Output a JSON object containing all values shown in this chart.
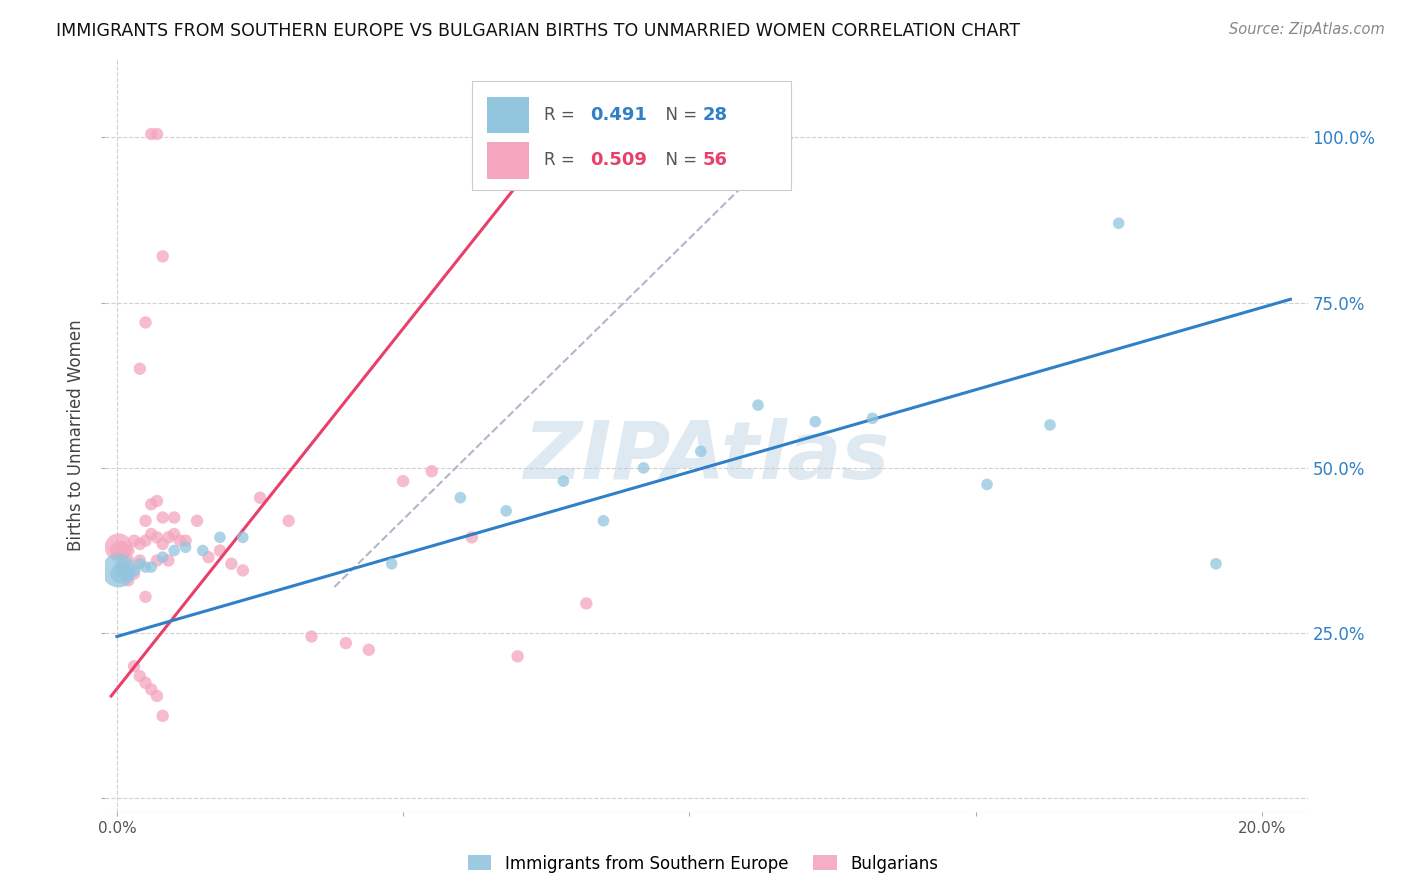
{
  "title": "IMMIGRANTS FROM SOUTHERN EUROPE VS BULGARIAN BIRTHS TO UNMARRIED WOMEN CORRELATION CHART",
  "source": "Source: ZipAtlas.com",
  "ylabel_left": "Births to Unmarried Women",
  "legend_labels": [
    "Immigrants from Southern Europe",
    "Bulgarians"
  ],
  "watermark": "ZIPAtlas",
  "blue_color": "#92c5de",
  "pink_color": "#f4a6be",
  "blue_line_color": "#3080c8",
  "pink_line_color": "#e8406a",
  "xlim": [
    -0.002,
    0.208
  ],
  "ylim": [
    -0.02,
    1.12
  ],
  "blue_line_x": [
    0.0,
    0.205
  ],
  "blue_line_y": [
    0.245,
    0.755
  ],
  "pink_line_x": [
    -0.001,
    0.077
  ],
  "pink_line_y": [
    0.155,
    1.005
  ],
  "dashed_line_x": [
    0.038,
    0.118
  ],
  "dashed_line_y": [
    0.32,
    1.0
  ],
  "blue_scatter_x": [
    0.0003,
    0.0006,
    0.001,
    0.002,
    0.003,
    0.004,
    0.005,
    0.006,
    0.008,
    0.01,
    0.012,
    0.015,
    0.018,
    0.022,
    0.048,
    0.06,
    0.068,
    0.078,
    0.085,
    0.092,
    0.102,
    0.112,
    0.122,
    0.132,
    0.152,
    0.163,
    0.175,
    0.192
  ],
  "blue_scatter_y": [
    0.345,
    0.34,
    0.35,
    0.34,
    0.345,
    0.355,
    0.35,
    0.35,
    0.365,
    0.375,
    0.38,
    0.375,
    0.395,
    0.395,
    0.355,
    0.455,
    0.435,
    0.48,
    0.42,
    0.5,
    0.525,
    0.595,
    0.57,
    0.575,
    0.475,
    0.565,
    0.87,
    0.355
  ],
  "blue_scatter_sizes": [
    600,
    200,
    130,
    100,
    80,
    70,
    70,
    70,
    70,
    70,
    70,
    70,
    70,
    70,
    70,
    70,
    70,
    70,
    70,
    70,
    70,
    70,
    70,
    70,
    70,
    70,
    70,
    70
  ],
  "pink_scatter_x": [
    0.0003,
    0.0005,
    0.001,
    0.001,
    0.001,
    0.001,
    0.002,
    0.002,
    0.002,
    0.003,
    0.003,
    0.004,
    0.004,
    0.005,
    0.005,
    0.005,
    0.006,
    0.006,
    0.007,
    0.007,
    0.007,
    0.008,
    0.008,
    0.009,
    0.009,
    0.01,
    0.01,
    0.011,
    0.012,
    0.014,
    0.016,
    0.018,
    0.02,
    0.022,
    0.025,
    0.03,
    0.034,
    0.04,
    0.044,
    0.05,
    0.055,
    0.062,
    0.07,
    0.082,
    0.004,
    0.005,
    0.006,
    0.007,
    0.008,
    0.003,
    0.004,
    0.005,
    0.006,
    0.007,
    0.008
  ],
  "pink_scatter_y": [
    0.38,
    0.375,
    0.38,
    0.37,
    0.35,
    0.34,
    0.375,
    0.36,
    0.33,
    0.39,
    0.34,
    0.385,
    0.36,
    0.42,
    0.39,
    0.305,
    0.445,
    0.4,
    0.45,
    0.395,
    0.36,
    0.425,
    0.385,
    0.395,
    0.36,
    0.425,
    0.4,
    0.39,
    0.39,
    0.42,
    0.365,
    0.375,
    0.355,
    0.345,
    0.455,
    0.42,
    0.245,
    0.235,
    0.225,
    0.48,
    0.495,
    0.395,
    0.215,
    0.295,
    0.65,
    0.72,
    1.005,
    1.005,
    0.82,
    0.2,
    0.185,
    0.175,
    0.165,
    0.155,
    0.125
  ],
  "pink_scatter_sizes": [
    400,
    200,
    80,
    80,
    80,
    80,
    80,
    80,
    80,
    80,
    80,
    80,
    80,
    80,
    80,
    80,
    80,
    80,
    80,
    80,
    80,
    80,
    80,
    80,
    80,
    80,
    80,
    80,
    80,
    80,
    80,
    80,
    80,
    80,
    80,
    80,
    80,
    80,
    80,
    80,
    80,
    80,
    80,
    80,
    80,
    80,
    80,
    80,
    80,
    80,
    80,
    80,
    80,
    80,
    80
  ],
  "background_color": "#ffffff",
  "grid_color": "#d0d0d0"
}
